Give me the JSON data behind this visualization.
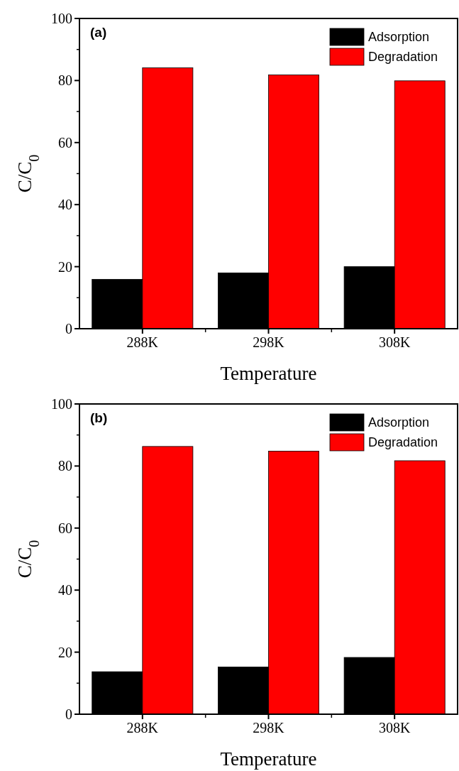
{
  "chart_data": [
    {
      "type": "bar",
      "title": "(a)",
      "xlabel": "Temperature",
      "ylabel": "C/C$_{0}$",
      "categories": [
        "288K",
        "298K",
        "308K"
      ],
      "series": [
        {
          "name": "Adsorption",
          "color": "#000000",
          "values": [
            15.9,
            18.0,
            20.0
          ]
        },
        {
          "name": "Degradation",
          "color": "#ff0000",
          "values": [
            84.1,
            81.8,
            79.9
          ]
        }
      ],
      "ylim": [
        0,
        100
      ],
      "yticks": [
        0,
        20,
        40,
        60,
        80,
        100
      ],
      "legend": "top right"
    },
    {
      "type": "bar",
      "title": "(b)",
      "xlabel": "Temperature",
      "ylabel": "C/C$_{0}$",
      "categories": [
        "288K",
        "298K",
        "308K"
      ],
      "series": [
        {
          "name": "Adsorption",
          "color": "#000000",
          "values": [
            13.7,
            15.2,
            18.3
          ]
        },
        {
          "name": "Degradation",
          "color": "#ff0000",
          "values": [
            86.3,
            84.8,
            81.7
          ]
        }
      ],
      "ylim": [
        0,
        100
      ],
      "yticks": [
        0,
        20,
        40,
        60,
        80,
        100
      ],
      "legend": "top right"
    }
  ]
}
